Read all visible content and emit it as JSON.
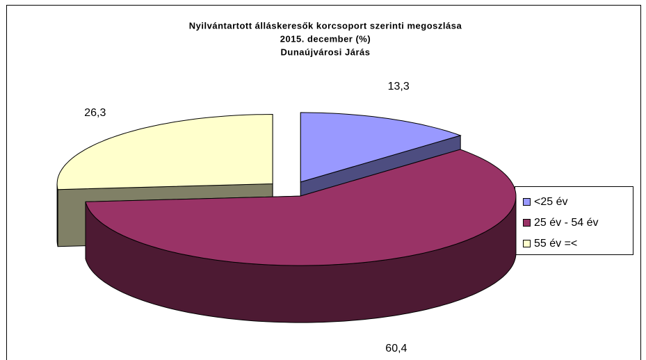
{
  "chart_data": {
    "type": "pie",
    "title": [
      "Nyilvántartott álláskeresők korcsoport szerinti megoszlása",
      "2015. december (%)",
      "Dunaújvárosi Járás"
    ],
    "categories": [
      "<25 év",
      "25 év - 54 év",
      "55 év =<"
    ],
    "values": [
      13.3,
      60.4,
      26.3
    ],
    "value_labels": [
      "13,3",
      "60,4",
      "26,3"
    ],
    "colors": [
      "#9999ff",
      "#993366",
      "#ffffcc"
    ],
    "legend": "right"
  }
}
